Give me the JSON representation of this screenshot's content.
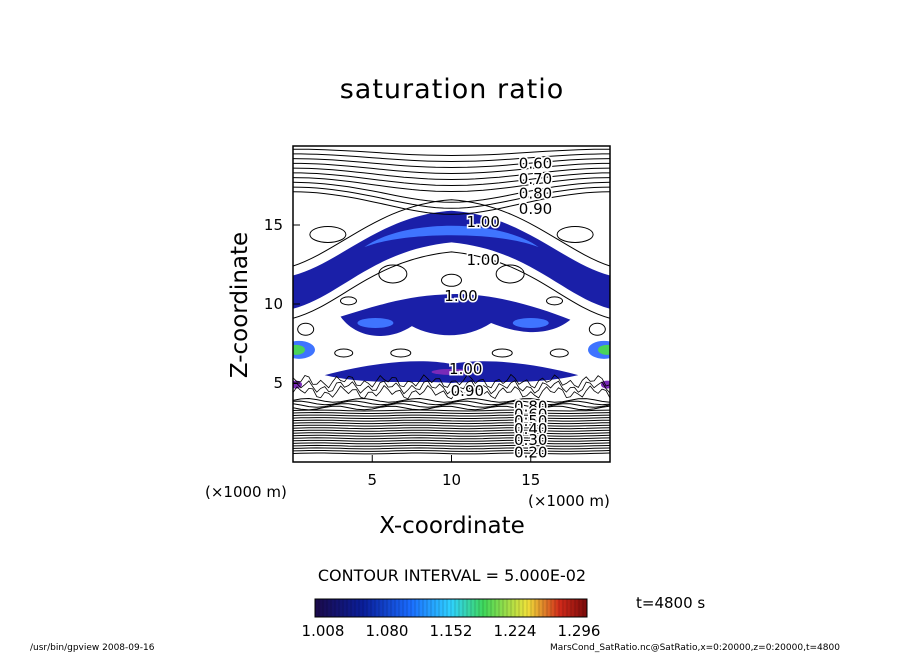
{
  "title": "saturation ratio",
  "xlabel": "X-coordinate",
  "ylabel": "Z-coordinate",
  "x_unit": "(×1000 m)",
  "z_unit": "(×1000 m)",
  "contour_text": "CONTOUR INTERVAL = 5.000E-02",
  "time_text": "t=4800 s",
  "footer_left": "/usr/bin/gpview   2008-09-16",
  "footer_right": "MarsCond_SatRatio.nc@SatRatio,x=0:20000,z=0:20000,t=4800",
  "colorbar_ticks": [
    "1.008",
    "1.080",
    "1.152",
    "1.224",
    "1.296"
  ],
  "chart_data": {
    "type": "heatmap",
    "title": "saturation ratio",
    "xlabel": "X-coordinate",
    "ylabel": "Z-coordinate",
    "xlim": [
      0,
      20
    ],
    "ylim": [
      0,
      20
    ],
    "xticks": [
      5,
      10,
      15
    ],
    "yticks": [
      5,
      10,
      15
    ],
    "contour_interval": 0.05,
    "contour_labels": [
      {
        "text": "0.60",
        "x": 15.3,
        "z": 18.9
      },
      {
        "text": "0.70",
        "x": 15.3,
        "z": 17.9
      },
      {
        "text": "0.80",
        "x": 15.3,
        "z": 17.0
      },
      {
        "text": "0.90",
        "x": 15.3,
        "z": 16.0
      },
      {
        "text": "1.00",
        "x": 12.0,
        "z": 15.2
      },
      {
        "text": "1.00",
        "x": 12.0,
        "z": 12.8
      },
      {
        "text": "1.00",
        "x": 10.6,
        "z": 10.5
      },
      {
        "text": "1.00",
        "x": 10.9,
        "z": 5.9
      },
      {
        "text": "0.90",
        "x": 11.0,
        "z": 4.5
      },
      {
        "text": "0.80",
        "x": 15.0,
        "z": 3.5
      },
      {
        "text": "0.60",
        "x": 15.0,
        "z": 3.0
      },
      {
        "text": "0.50",
        "x": 15.0,
        "z": 2.6
      },
      {
        "text": "0.40",
        "x": 15.0,
        "z": 2.1
      },
      {
        "text": "0.30",
        "x": 15.0,
        "z": 1.4
      },
      {
        "text": "0.20",
        "x": 15.0,
        "z": 0.6
      }
    ],
    "colorbar": {
      "min": 1.008,
      "max": 1.296,
      "ticks": [
        1.008,
        1.08,
        1.152,
        1.224,
        1.296
      ],
      "colors": [
        "#1b0a4a",
        "#0a1f9c",
        "#1a6cff",
        "#2fd2ff",
        "#3fd85a",
        "#f0e23a",
        "#d12a1a",
        "#7a0a0a"
      ]
    },
    "color_colors": {
      "low": "#1a1fa8",
      "mid": "#3f74ff",
      "high_green": "#49d35a",
      "peak_purple": "#7a2ab8"
    }
  }
}
